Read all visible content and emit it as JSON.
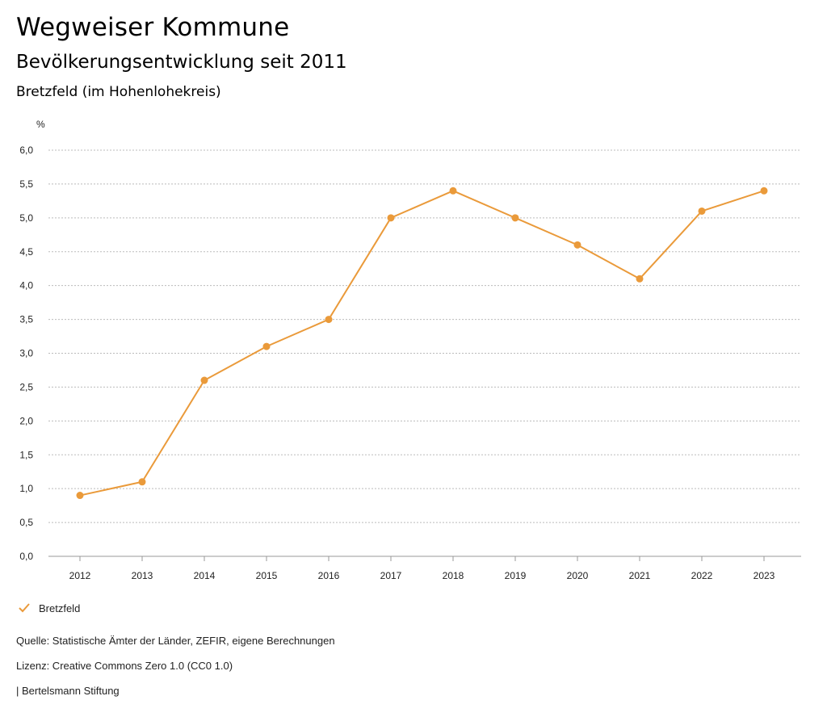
{
  "header": {
    "title": "Wegweiser Kommune",
    "subtitle": "Bevölkerungsentwicklung seit 2011",
    "region": "Bretzfeld (im Hohenlohekreis)"
  },
  "chart_data": {
    "type": "line",
    "unit_label": "%",
    "categories": [
      "2012",
      "2013",
      "2014",
      "2015",
      "2016",
      "2017",
      "2018",
      "2019",
      "2020",
      "2021",
      "2022",
      "2023"
    ],
    "series": [
      {
        "name": "Bretzfeld",
        "color": "#ea9a3a",
        "values": [
          0.9,
          1.1,
          2.6,
          3.1,
          3.5,
          5.0,
          5.4,
          5.0,
          4.6,
          4.1,
          5.1,
          5.4
        ]
      }
    ],
    "y_ticks": [
      "0,0",
      "0,5",
      "1,0",
      "1,5",
      "2,0",
      "2,5",
      "3,0",
      "3,5",
      "4,0",
      "4,5",
      "5,0",
      "5,5",
      "6,0"
    ],
    "ylim": [
      0,
      6
    ],
    "y_step": 0.5,
    "grid": true,
    "legend_position": "bottom-left"
  },
  "legend": {
    "label": "Bretzfeld"
  },
  "footer": {
    "source": "Quelle: Statistische Ämter der Länder, ZEFIR, eigene Berechnungen",
    "license": "Lizenz: Creative Commons Zero 1.0 (CC0 1.0)",
    "publisher": "| Bertelsmann Stiftung"
  }
}
